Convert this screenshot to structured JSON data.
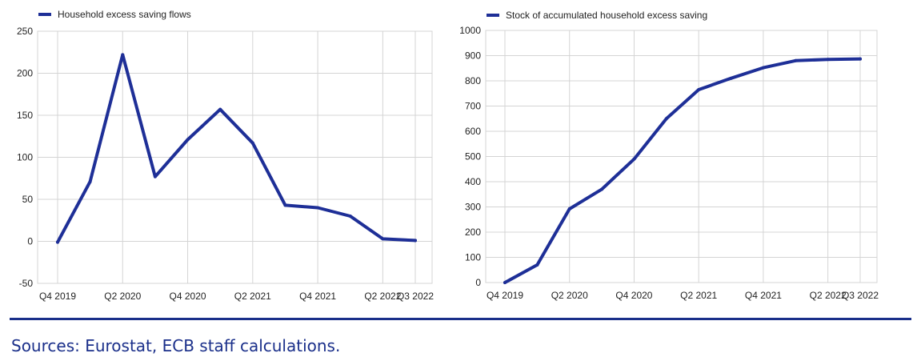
{
  "chart_data": [
    {
      "type": "line",
      "title": "",
      "xlabel": "",
      "ylabel": "",
      "legend": "Household excess saving flows",
      "legend_position": "top-left",
      "color": "#1e2f97",
      "grid": true,
      "ylim": [
        -50,
        250
      ],
      "yticks": [
        -50,
        0,
        50,
        100,
        150,
        200,
        250
      ],
      "yticklabels": [
        "-50",
        "0",
        "50",
        "100",
        "150",
        "200",
        "250"
      ],
      "categories": [
        "Q4 2019",
        "Q1 2020",
        "Q2 2020",
        "Q3 2020",
        "Q4 2020",
        "Q1 2021",
        "Q2 2021",
        "Q3 2021",
        "Q4 2021",
        "Q1 2022",
        "Q2 2022",
        "Q3 2022"
      ],
      "tick_categories": [
        "Q4 2019",
        "Q2 2020",
        "Q4 2020",
        "Q2 2021",
        "Q4 2021",
        "Q2 2022",
        "Q3 2022"
      ],
      "series": [
        {
          "name": "Household excess saving flows",
          "values": [
            -1,
            71,
            222,
            77,
            121,
            157,
            117,
            43,
            40,
            30,
            3,
            1
          ]
        }
      ]
    },
    {
      "type": "line",
      "title": "",
      "xlabel": "",
      "ylabel": "",
      "legend": "Stock of accumulated household excess saving",
      "legend_position": "top-left",
      "color": "#1e2f97",
      "grid": true,
      "ylim": [
        0,
        1000
      ],
      "yticks": [
        0,
        100,
        200,
        300,
        400,
        500,
        600,
        700,
        800,
        900,
        1000
      ],
      "yticklabels": [
        "0",
        "100",
        "200",
        "300",
        "400",
        "500",
        "600",
        "700",
        "800",
        "900",
        "1000"
      ],
      "categories": [
        "Q4 2019",
        "Q1 2020",
        "Q2 2020",
        "Q3 2020",
        "Q4 2020",
        "Q1 2021",
        "Q2 2021",
        "Q3 2021",
        "Q4 2021",
        "Q1 2022",
        "Q2 2022",
        "Q3 2022"
      ],
      "tick_categories": [
        "Q4 2019",
        "Q2 2020",
        "Q4 2020",
        "Q2 2021",
        "Q4 2021",
        "Q2 2022",
        "Q3 2022"
      ],
      "series": [
        {
          "name": "Stock of accumulated household excess saving",
          "values": [
            0,
            70,
            292,
            370,
            490,
            650,
            765,
            810,
            852,
            880,
            885,
            887
          ]
        }
      ]
    }
  ],
  "source_text": "Sources: Eurostat, ECB staff calculations."
}
